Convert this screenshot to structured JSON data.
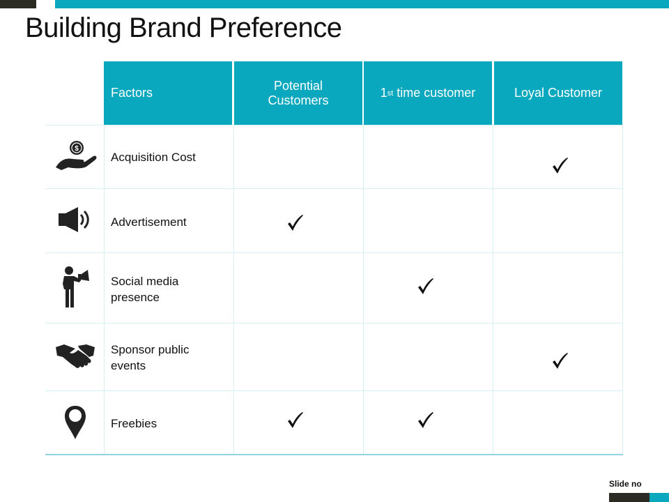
{
  "title": "Building Brand Preference",
  "header": {
    "factors": "Factors",
    "potential": "Potential Customers",
    "first_time_prefix": "1",
    "first_time_sup": "st",
    "first_time_suffix": " time customer",
    "loyal": "Loyal Customer"
  },
  "rows": [
    {
      "icon": "hand-coin-icon",
      "label": "Acquisition Cost",
      "potential": false,
      "first_time": false,
      "loyal": true
    },
    {
      "icon": "speaker-icon",
      "label": "Advertisement",
      "potential": true,
      "first_time": false,
      "loyal": false
    },
    {
      "icon": "person-megaphone-icon",
      "label": "Social media presence",
      "potential": false,
      "first_time": true,
      "loyal": false
    },
    {
      "icon": "handshake-icon",
      "label": "Sponsor public events",
      "potential": false,
      "first_time": false,
      "loyal": true
    },
    {
      "icon": "map-pin-icon",
      "label": "Freebies",
      "potential": true,
      "first_time": true,
      "loyal": false
    }
  ],
  "footer": {
    "slide_no": "Slide no"
  },
  "colors": {
    "accent": "#0aa8be",
    "dark": "#2b2b24"
  }
}
